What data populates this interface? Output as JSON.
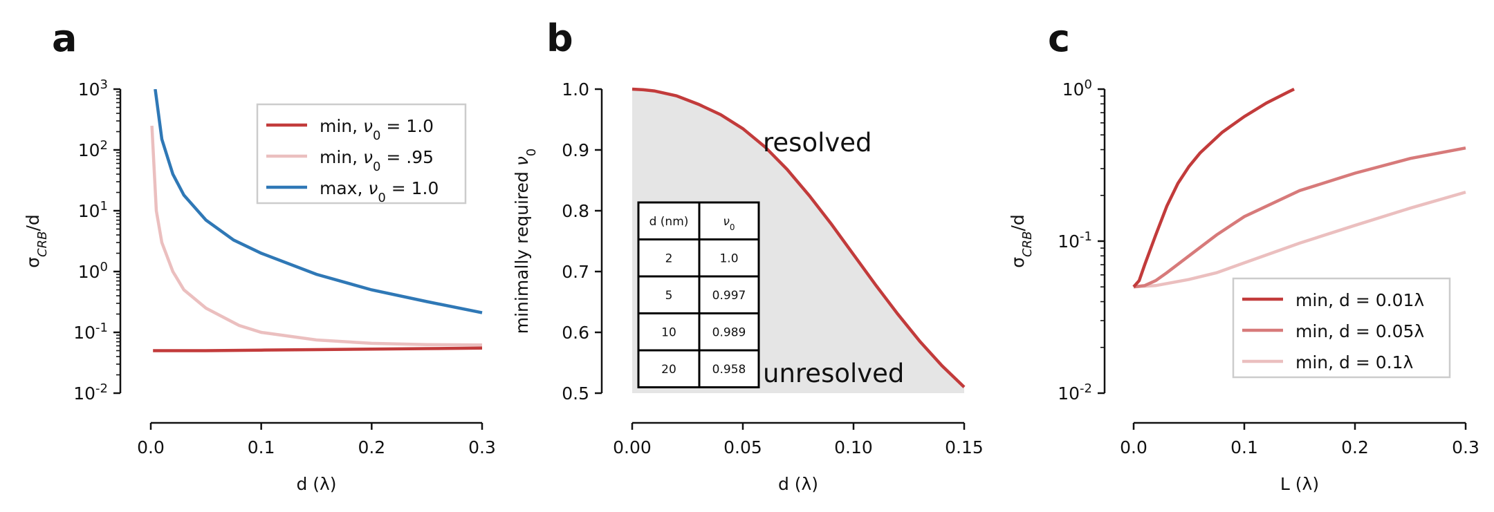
{
  "panels": {
    "a": {
      "letter": "a"
    },
    "b": {
      "letter": "b",
      "region_upper": "resolved",
      "region_lower": "unresolved"
    },
    "c": {
      "letter": "c"
    }
  },
  "chart_data": [
    {
      "type": "line",
      "panel": "a",
      "xlabel": "d (λ)",
      "ylabel": "σ_CRB/d",
      "xlim": [
        0.0,
        0.3
      ],
      "xticks": [
        "0.0",
        "0.1",
        "0.2",
        "0.3"
      ],
      "ylim": [
        0.01,
        1000
      ],
      "yscale": "log",
      "yticks": [
        "10^-2",
        "10^-1",
        "10^0",
        "10^1",
        "10^2",
        "10^3"
      ],
      "legend_position": "upper right",
      "series": [
        {
          "name": "min, ν0 = 1.0",
          "color": "#c23b3b",
          "x": [
            0.002,
            0.05,
            0.1,
            0.15,
            0.2,
            0.25,
            0.3
          ],
          "y": [
            0.05,
            0.05,
            0.051,
            0.052,
            0.053,
            0.054,
            0.055
          ]
        },
        {
          "name": "min, ν0 = .95",
          "color": "#ebbfbf",
          "x": [
            0.001,
            0.005,
            0.01,
            0.02,
            0.03,
            0.05,
            0.08,
            0.1,
            0.15,
            0.2,
            0.25,
            0.3
          ],
          "y": [
            250,
            10,
            3,
            1,
            0.5,
            0.25,
            0.13,
            0.1,
            0.075,
            0.066,
            0.063,
            0.062
          ]
        },
        {
          "name": "max, ν0 = 1.0",
          "color": "#2f78b6",
          "x": [
            0.004,
            0.01,
            0.02,
            0.03,
            0.05,
            0.075,
            0.1,
            0.15,
            0.2,
            0.25,
            0.3
          ],
          "y": [
            1000,
            150,
            40,
            18,
            7,
            3.3,
            2.0,
            0.9,
            0.5,
            0.32,
            0.21
          ]
        }
      ]
    },
    {
      "type": "area",
      "panel": "b",
      "xlabel": "d (λ)",
      "ylabel": "minimally required ν0",
      "xlim": [
        0.0,
        0.15
      ],
      "xticks": [
        "0.00",
        "0.05",
        "0.10",
        "0.15"
      ],
      "ylim": [
        0.5,
        1.0
      ],
      "yticks": [
        "0.5",
        "0.6",
        "0.7",
        "0.8",
        "0.9",
        "1.0"
      ],
      "series": [
        {
          "name": "",
          "color": "#c23b3b",
          "x": [
            0.0,
            0.005,
            0.01,
            0.02,
            0.03,
            0.04,
            0.05,
            0.06,
            0.07,
            0.08,
            0.09,
            0.1,
            0.11,
            0.12,
            0.13,
            0.14,
            0.15
          ],
          "y": [
            1.0,
            0.999,
            0.997,
            0.989,
            0.975,
            0.958,
            0.935,
            0.905,
            0.868,
            0.825,
            0.778,
            0.728,
            0.678,
            0.63,
            0.585,
            0.545,
            0.51
          ]
        }
      ],
      "table": {
        "columns": [
          "d (nm)",
          "ν0"
        ],
        "rows": [
          [
            "2",
            "1.0"
          ],
          [
            "5",
            "0.997"
          ],
          [
            "10",
            "0.989"
          ],
          [
            "20",
            "0.958"
          ]
        ]
      }
    },
    {
      "type": "line",
      "panel": "c",
      "xlabel": "L (λ)",
      "ylabel": "σ_CRB/d",
      "xlim": [
        0.0,
        0.3
      ],
      "xticks": [
        "0.0",
        "0.1",
        "0.2",
        "0.3"
      ],
      "ylim": [
        0.01,
        1.0
      ],
      "yscale": "log",
      "yticks": [
        "10^-2",
        "10^-1",
        "10^0"
      ],
      "legend_position": "lower right",
      "series": [
        {
          "name": "min, d = 0.01λ",
          "color": "#c23b3b",
          "x": [
            0.0,
            0.005,
            0.01,
            0.02,
            0.03,
            0.04,
            0.05,
            0.06,
            0.08,
            0.1,
            0.12,
            0.14,
            0.145
          ],
          "y": [
            0.05,
            0.055,
            0.07,
            0.11,
            0.17,
            0.24,
            0.31,
            0.38,
            0.52,
            0.66,
            0.81,
            0.96,
            1.0
          ]
        },
        {
          "name": "min, d = 0.05λ",
          "color": "#d77a7a",
          "x": [
            0.0,
            0.01,
            0.02,
            0.03,
            0.05,
            0.075,
            0.1,
            0.15,
            0.2,
            0.25,
            0.3
          ],
          "y": [
            0.05,
            0.051,
            0.055,
            0.062,
            0.08,
            0.11,
            0.145,
            0.215,
            0.28,
            0.35,
            0.41
          ]
        },
        {
          "name": "min, d = 0.1λ",
          "color": "#ebbfbf",
          "x": [
            0.0,
            0.02,
            0.05,
            0.075,
            0.1,
            0.15,
            0.2,
            0.25,
            0.3
          ],
          "y": [
            0.05,
            0.051,
            0.056,
            0.062,
            0.072,
            0.097,
            0.127,
            0.165,
            0.21
          ]
        }
      ]
    }
  ]
}
